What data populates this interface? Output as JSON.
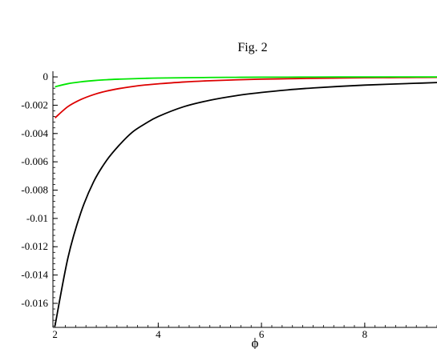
{
  "chart_data": {
    "type": "line",
    "title": "Fig. 2",
    "xlabel": "ϕ",
    "ylabel": "",
    "xlim": [
      1.96,
      9.4
    ],
    "ylim": [
      -0.0177,
      0.0004
    ],
    "x_ticks": [
      2,
      4,
      6,
      8
    ],
    "x_tick_labels": [
      "2",
      "4",
      "6",
      "8"
    ],
    "y_ticks": [
      0,
      -0.002,
      -0.004,
      -0.006,
      -0.008,
      -0.01,
      -0.012,
      -0.014,
      -0.016
    ],
    "y_tick_labels": [
      "0",
      "-0.002",
      "-0.004",
      "-0.006",
      "-0.008",
      "-0.01",
      "-0.012",
      "-0.014",
      "-0.016"
    ],
    "grid": false,
    "series": [
      {
        "color": "#000000",
        "x": [
          2,
          2.25,
          2.5,
          2.75,
          3,
          3.25,
          3.5,
          3.75,
          4,
          4.5,
          5,
          5.5,
          6,
          6.5,
          7,
          7.5,
          8,
          8.5,
          9,
          9.4
        ],
        "values": [
          -0.0176,
          -0.0128,
          -0.0096,
          -0.0074,
          -0.0059,
          -0.0048,
          -0.0039,
          -0.0033,
          -0.0028,
          -0.0021,
          -0.00165,
          -0.00133,
          -0.0011,
          -0.00092,
          -0.00078,
          -0.00067,
          -0.00058,
          -0.00051,
          -0.00045,
          -0.0004
        ]
      },
      {
        "color": "#dd0000",
        "x": [
          2,
          2.25,
          2.5,
          2.75,
          3,
          3.25,
          3.5,
          3.75,
          4,
          4.5,
          5,
          5.5,
          6,
          6.5,
          7,
          7.5,
          8,
          8.5,
          9,
          9.4
        ],
        "values": [
          -0.0029,
          -0.0021,
          -0.0016,
          -0.00125,
          -0.001,
          -0.00082,
          -0.00068,
          -0.00057,
          -0.00049,
          -0.00036,
          -0.00027,
          -0.00021,
          -0.00016,
          -0.00013,
          -0.0001,
          -8e-05,
          -6e-05,
          -5e-05,
          -4e-05,
          -3e-05
        ]
      },
      {
        "color": "#00e600",
        "x": [
          2,
          2.25,
          2.5,
          2.75,
          3,
          3.25,
          3.5,
          3.75,
          4,
          4.5,
          5,
          5.5,
          6,
          6.5,
          7,
          7.5,
          8,
          8.5,
          9,
          9.4
        ],
        "values": [
          -0.0007,
          -0.00048,
          -0.00035,
          -0.00026,
          -0.0002,
          -0.00016,
          -0.00013,
          -0.0001,
          -8e-05,
          -6e-05,
          -4e-05,
          -3e-05,
          -2e-05,
          -1.5e-05,
          -1e-05,
          -8e-06,
          -6e-06,
          -5e-06,
          -4e-06,
          -3e-06
        ]
      }
    ]
  }
}
